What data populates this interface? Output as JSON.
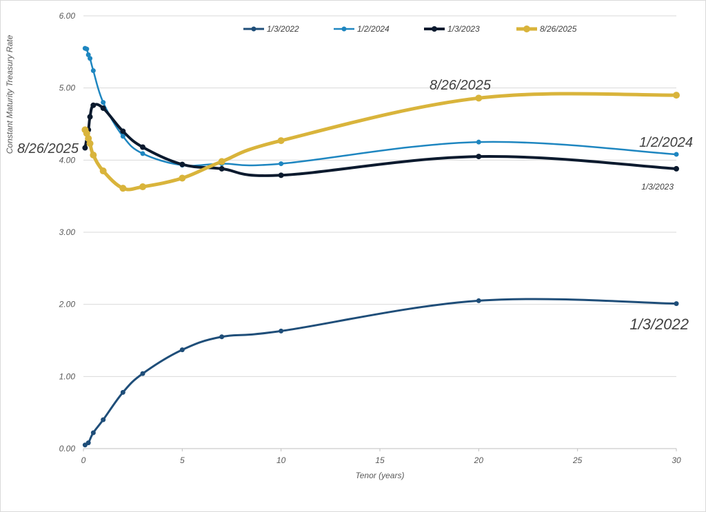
{
  "chart_data": {
    "type": "line",
    "title": "",
    "xlabel": "Tenor (years)",
    "ylabel": "Constant Maturity Treasury Rate",
    "xlim": [
      0,
      30
    ],
    "ylim": [
      0,
      6
    ],
    "xticks": [
      "0",
      "5",
      "10",
      "15",
      "20",
      "25",
      "30"
    ],
    "yticks": [
      "0.00",
      "1.00",
      "2.00",
      "3.00",
      "4.00",
      "5.00",
      "6.00"
    ],
    "grid": "horizontal",
    "legend": "top-center",
    "series": [
      {
        "name": "1/3/2022",
        "color": "#1f4e79",
        "x": [
          0.083,
          0.25,
          0.5,
          1,
          2,
          3,
          5,
          7,
          10,
          20,
          30
        ],
        "y": [
          0.05,
          0.08,
          0.22,
          0.4,
          0.78,
          1.04,
          1.37,
          1.55,
          1.63,
          2.05,
          2.01
        ]
      },
      {
        "name": "1/2/2024",
        "color": "#1e86c0",
        "x": [
          0.083,
          0.167,
          0.25,
          0.333,
          0.5,
          1,
          2,
          3,
          5,
          7,
          10,
          20,
          30
        ],
        "y": [
          5.55,
          5.54,
          5.46,
          5.41,
          5.24,
          4.8,
          4.33,
          4.09,
          3.93,
          3.95,
          3.95,
          4.25,
          4.08
        ]
      },
      {
        "name": "1/3/2023",
        "color": "#0b1a2e",
        "x": [
          0.083,
          0.25,
          0.333,
          0.5,
          1,
          2,
          3,
          5,
          7,
          10,
          20,
          30
        ],
        "y": [
          4.17,
          4.42,
          4.6,
          4.76,
          4.72,
          4.4,
          4.18,
          3.94,
          3.88,
          3.79,
          4.05,
          3.88
        ]
      },
      {
        "name": "8/26/2025",
        "color": "#d9b43b",
        "x": [
          0.083,
          0.167,
          0.25,
          0.333,
          0.5,
          1,
          2,
          3,
          5,
          7,
          10,
          20,
          30
        ],
        "y": [
          4.42,
          4.37,
          4.3,
          4.23,
          4.07,
          3.85,
          3.61,
          3.63,
          3.75,
          3.98,
          4.27,
          4.86,
          4.9
        ]
      }
    ],
    "annotations": [
      {
        "text": "8/26/2025",
        "series": "8/26/2025",
        "anchor": "left"
      },
      {
        "text": "8/26/2025",
        "series": "8/26/2025",
        "anchor": "upper"
      },
      {
        "text": "1/2/2024",
        "series": "1/2/2024",
        "anchor": "right"
      },
      {
        "text": "1/3/2023",
        "series": "1/3/2023",
        "anchor": "right"
      },
      {
        "text": "1/3/2022",
        "series": "1/3/2022",
        "anchor": "right"
      }
    ]
  }
}
